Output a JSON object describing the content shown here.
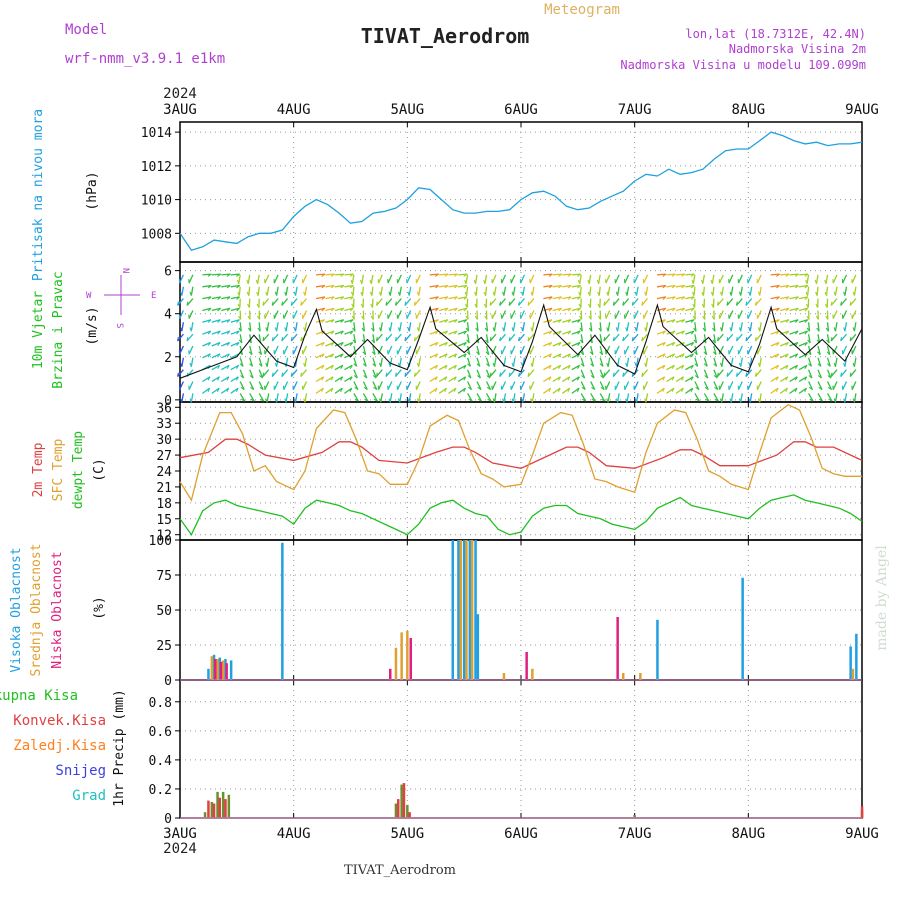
{
  "header": {
    "model_label": "Model",
    "model_name": "wrf-nmm_v3.9.1  e1km",
    "station_title": "TIVAT_Aerodrom",
    "meteogram_label": "Meteogram",
    "lonlat": "lon,lat (18.7312E, 42.4N)",
    "elevation": "Nadmorska Visina 2m",
    "model_elevation": "Nadmorska Visina u modelu 109.099m",
    "watermark": "made by Angel",
    "footer_station": "TIVAT_Aerodrom",
    "year_top": "2024",
    "year_bottom": "2024"
  },
  "colors": {
    "pressure": "#1fa0e0",
    "temp2m": "#e04040",
    "sfc": "#e0a030",
    "dew": "#20c020",
    "high_cloud": "#20a0e0",
    "mid_cloud": "#e0a030",
    "low_cloud": "#e02080",
    "total_precip": "#20c020",
    "conv_precip": "#e04040",
    "grid_stroke": "#999999"
  },
  "chart_data": [
    {
      "id": "pressure",
      "type": "line",
      "ylabel": "Pritisak na nivou mora",
      "unit": "(hPa)",
      "ylim": [
        1006.3,
        1014.6
      ],
      "yticks": [
        1008,
        1010,
        1012,
        1014
      ],
      "x_days": [
        0,
        0.1,
        0.2,
        0.3,
        0.4,
        0.5,
        0.6,
        0.7,
        0.8,
        0.9,
        1.0,
        1.1,
        1.2,
        1.3,
        1.4,
        1.5,
        1.6,
        1.7,
        1.8,
        1.9,
        2.0,
        2.1,
        2.2,
        2.3,
        2.4,
        2.5,
        2.6,
        2.7,
        2.8,
        2.9,
        3.0,
        3.1,
        3.2,
        3.3,
        3.4,
        3.5,
        3.6,
        3.7,
        3.8,
        3.9,
        4.0,
        4.1,
        4.2,
        4.3,
        4.4,
        4.5,
        4.6,
        4.7,
        4.8,
        4.9,
        5.0,
        5.1,
        5.2,
        5.3,
        5.4,
        5.5,
        5.6,
        5.7,
        5.8,
        5.9,
        6.0
      ],
      "values": [
        1008.0,
        1007.0,
        1007.2,
        1007.6,
        1007.5,
        1007.4,
        1007.8,
        1008.0,
        1008.0,
        1008.2,
        1009.0,
        1009.6,
        1010.0,
        1009.7,
        1009.2,
        1008.6,
        1008.7,
        1009.2,
        1009.3,
        1009.5,
        1010.0,
        1010.7,
        1010.6,
        1010.0,
        1009.4,
        1009.2,
        1009.2,
        1009.3,
        1009.3,
        1009.4,
        1010.0,
        1010.4,
        1010.5,
        1010.2,
        1009.6,
        1009.4,
        1009.5,
        1009.9,
        1010.2,
        1010.5,
        1011.1,
        1011.5,
        1011.4,
        1011.8,
        1011.5,
        1011.6,
        1011.8,
        1012.4,
        1012.9,
        1013.0,
        1013.0,
        1013.5,
        1014.0,
        1013.8,
        1013.5,
        1013.3,
        1013.4,
        1013.2,
        1013.3,
        1013.3,
        1013.4
      ]
    },
    {
      "id": "wind",
      "type": "line",
      "ylabel": "10m Vjetar",
      "ylabel2": "Brzina i Pravac",
      "unit": "(m/s)",
      "ylim": [
        -0.1,
        6.4
      ],
      "yticks": [
        0,
        2,
        4,
        6
      ],
      "compass": "N S W E",
      "x_days": [
        0,
        0.25,
        0.5,
        0.65,
        0.85,
        1.0,
        1.1,
        1.2,
        1.25,
        1.5,
        1.65,
        1.85,
        2.0,
        2.1,
        2.2,
        2.25,
        2.5,
        2.65,
        2.85,
        3.0,
        3.1,
        3.2,
        3.25,
        3.5,
        3.65,
        3.85,
        4.0,
        4.1,
        4.2,
        4.25,
        4.5,
        4.65,
        4.85,
        5.0,
        5.1,
        5.2,
        5.25,
        5.5,
        5.65,
        5.85,
        6.0
      ],
      "values": [
        1.0,
        1.5,
        2.0,
        3.0,
        1.8,
        1.5,
        3.0,
        4.2,
        3.2,
        2.0,
        2.8,
        1.7,
        1.4,
        2.8,
        4.3,
        3.3,
        2.2,
        2.9,
        1.6,
        1.3,
        2.7,
        4.4,
        3.4,
        2.1,
        3.0,
        1.6,
        1.2,
        2.7,
        4.4,
        3.4,
        2.2,
        2.9,
        1.6,
        1.3,
        2.6,
        4.3,
        3.3,
        2.1,
        2.8,
        1.8,
        3.3
      ]
    },
    {
      "id": "temperature",
      "type": "line",
      "ylabels": [
        "2m Temp",
        "SFC Temp",
        "dewpt Temp"
      ],
      "unit": "(C)",
      "ylim": [
        11.0,
        37.0
      ],
      "yticks": [
        12,
        15,
        18,
        21,
        24,
        27,
        30,
        33,
        36
      ],
      "series": [
        {
          "name": "2m Temp",
          "color": "#e04040",
          "x_days": [
            0,
            0.25,
            0.4,
            0.5,
            0.6,
            0.75,
            1.0,
            1.25,
            1.4,
            1.5,
            1.6,
            1.75,
            2.0,
            2.25,
            2.4,
            2.5,
            2.6,
            2.75,
            3.0,
            3.25,
            3.4,
            3.5,
            3.6,
            3.75,
            4.0,
            4.25,
            4.4,
            4.5,
            4.6,
            4.75,
            5.0,
            5.25,
            5.4,
            5.5,
            5.6,
            5.75,
            6.0
          ],
          "values": [
            26.5,
            27.5,
            30.0,
            30.0,
            29.0,
            27.0,
            26.0,
            27.5,
            29.5,
            29.5,
            28.5,
            26.0,
            25.5,
            27.5,
            28.5,
            28.5,
            27.5,
            25.5,
            24.5,
            27.0,
            28.5,
            28.5,
            27.5,
            25.0,
            24.5,
            26.5,
            28.0,
            28.0,
            27.0,
            25.0,
            25.0,
            27.0,
            29.5,
            29.5,
            28.5,
            28.5,
            26.0
          ]
        },
        {
          "name": "SFC Temp",
          "color": "#e0a030",
          "x_days": [
            0,
            0.1,
            0.2,
            0.35,
            0.45,
            0.55,
            0.65,
            0.75,
            0.85,
            1.0,
            1.1,
            1.2,
            1.35,
            1.45,
            1.55,
            1.65,
            1.75,
            1.85,
            2.0,
            2.1,
            2.2,
            2.35,
            2.45,
            2.55,
            2.65,
            2.75,
            2.85,
            3.0,
            3.1,
            3.2,
            3.35,
            3.45,
            3.55,
            3.65,
            3.75,
            3.85,
            4.0,
            4.1,
            4.2,
            4.35,
            4.45,
            4.55,
            4.65,
            4.75,
            4.85,
            5.0,
            5.1,
            5.2,
            5.35,
            5.45,
            5.55,
            5.65,
            5.75,
            5.85,
            6.0
          ],
          "values": [
            22.0,
            18.5,
            27.0,
            35.0,
            35.0,
            31.0,
            24.0,
            25.0,
            22.0,
            20.5,
            24.0,
            32.0,
            35.5,
            35.0,
            30.0,
            24.0,
            23.5,
            21.5,
            21.5,
            26.0,
            32.5,
            34.5,
            33.5,
            28.0,
            23.5,
            22.5,
            21.0,
            21.5,
            27.0,
            33.0,
            35.0,
            34.5,
            29.0,
            22.5,
            22.0,
            21.0,
            20.0,
            27.5,
            33.0,
            35.5,
            35.0,
            30.0,
            24.0,
            23.0,
            21.5,
            20.5,
            27.5,
            34.0,
            36.5,
            35.5,
            30.5,
            24.5,
            23.5,
            23.0,
            23.0
          ]
        },
        {
          "name": "dewpt Temp",
          "color": "#20c020",
          "x_days": [
            0,
            0.1,
            0.2,
            0.3,
            0.4,
            0.5,
            0.6,
            0.7,
            0.8,
            0.9,
            1.0,
            1.1,
            1.2,
            1.3,
            1.4,
            1.5,
            1.6,
            1.7,
            1.8,
            1.9,
            2.0,
            2.1,
            2.2,
            2.3,
            2.4,
            2.5,
            2.6,
            2.7,
            2.8,
            2.9,
            3.0,
            3.1,
            3.2,
            3.3,
            3.4,
            3.5,
            3.6,
            3.7,
            3.8,
            3.9,
            4.0,
            4.1,
            4.2,
            4.3,
            4.4,
            4.5,
            4.6,
            4.7,
            4.8,
            4.9,
            5.0,
            5.1,
            5.2,
            5.3,
            5.4,
            5.5,
            5.6,
            5.7,
            5.8,
            5.9,
            6.0
          ],
          "values": [
            15.0,
            12.0,
            16.5,
            18.0,
            18.5,
            17.5,
            17.0,
            16.5,
            16.0,
            15.5,
            14.0,
            17.0,
            18.5,
            18.0,
            17.5,
            16.5,
            16.0,
            15.0,
            14.0,
            13.0,
            12.0,
            14.0,
            17.0,
            18.0,
            18.5,
            17.0,
            16.0,
            15.5,
            13.0,
            12.0,
            12.5,
            15.5,
            17.0,
            17.5,
            17.5,
            16.0,
            15.5,
            15.0,
            14.0,
            13.5,
            13.0,
            14.5,
            17.0,
            18.0,
            19.0,
            17.5,
            17.0,
            16.5,
            16.0,
            15.5,
            15.0,
            17.0,
            18.5,
            19.0,
            19.5,
            18.5,
            18.0,
            17.5,
            17.0,
            16.0,
            14.5
          ]
        }
      ]
    },
    {
      "id": "clouds",
      "type": "bar",
      "ylabels": [
        "Visoka Oblacnost",
        "Srednja Oblacnost",
        "Niska Oblacnost"
      ],
      "unit": "(%)",
      "ylim": [
        0,
        100
      ],
      "yticks": [
        0,
        25,
        50,
        75,
        100
      ],
      "series": [
        {
          "name": "Visoka Oblacnost",
          "color": "#20a0e0",
          "x_days": [
            0.25,
            0.3,
            0.35,
            0.4,
            0.45,
            0.9,
            2.4,
            2.45,
            2.5,
            2.55,
            2.6,
            2.62,
            4.2,
            4.95,
            5.9,
            5.95
          ],
          "values": [
            8,
            18,
            16,
            15,
            14,
            98,
            100,
            100,
            100,
            100,
            100,
            47,
            43,
            73,
            24,
            33
          ]
        },
        {
          "name": "Srednja Oblacnost",
          "color": "#e0a030",
          "x_days": [
            0.28,
            0.33,
            0.38,
            1.9,
            1.95,
            2.0,
            2.47,
            2.52,
            2.57,
            2.85,
            3.1,
            3.9,
            4.05,
            5.92
          ],
          "values": [
            17,
            15,
            14,
            23,
            34,
            35,
            100,
            100,
            100,
            5,
            8,
            5,
            5,
            8
          ]
        },
        {
          "name": "Niska Oblacnost",
          "color": "#e02080",
          "x_days": [
            0.31,
            0.36,
            0.41,
            1.85,
            2.03,
            3.05,
            3.85
          ],
          "values": [
            15,
            13,
            12,
            8,
            30,
            20,
            45
          ]
        }
      ]
    },
    {
      "id": "precip",
      "type": "bar",
      "ylabels": [
        "Ukupna Kisa",
        "Konvek.Kisa",
        "Zaledj.Kisa",
        "Snijeg",
        "Grad"
      ],
      "legend_colors": [
        "#20c020",
        "#e04040",
        "#ff8020",
        "#4040e0",
        "#20c0c0"
      ],
      "unit": "1hr Precip (mm)",
      "ylim": [
        0,
        0.95
      ],
      "yticks": [
        0,
        0.2,
        0.4,
        0.6,
        0.8
      ],
      "ytick_labels": [
        "0",
        "0.2",
        "0.4",
        "0.6",
        "0.8"
      ],
      "x_labels": [
        "3AUG",
        "4AUG",
        "5AUG",
        "6AUG",
        "7AUG",
        "8AUG",
        "9AUG"
      ],
      "series": [
        {
          "name": "Ukupna Kisa",
          "color": "#6a8f30",
          "x_days": [
            0.22,
            0.28,
            0.33,
            0.38,
            0.43,
            1.9,
            1.95,
            2.0,
            4.0,
            6.0
          ],
          "values": [
            0.04,
            0.11,
            0.18,
            0.18,
            0.16,
            0.1,
            0.23,
            0.09,
            0.02,
            0.05
          ]
        },
        {
          "name": "Konvek.Kisa",
          "color": "#e04040",
          "x_days": [
            0.25,
            0.3,
            0.35,
            0.4,
            1.92,
            1.97,
            2.02,
            6.0
          ],
          "values": [
            0.12,
            0.1,
            0.14,
            0.13,
            0.13,
            0.24,
            0.04,
            0.08
          ]
        }
      ]
    }
  ],
  "x_axis": {
    "top_labels": [
      "3AUG",
      "4AUG",
      "5AUG",
      "6AUG",
      "7AUG",
      "8AUG",
      "9AUG"
    ]
  }
}
